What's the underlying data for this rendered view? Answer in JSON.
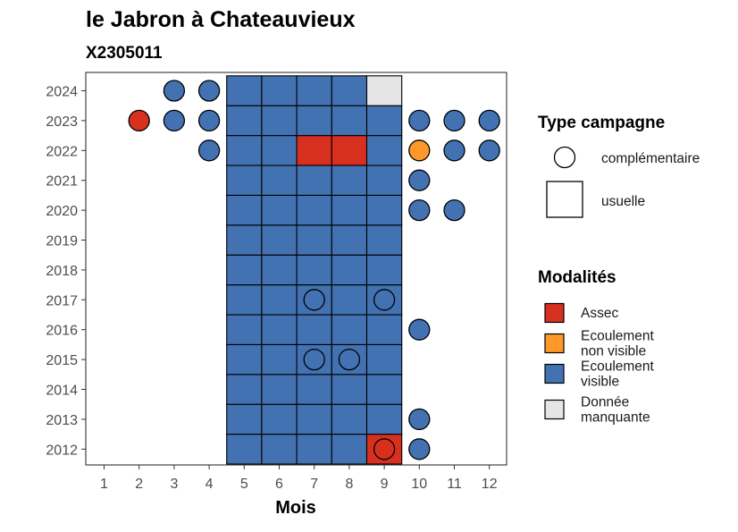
{
  "chart_data": {
    "type": "heatmap",
    "title": "le Jabron à Chateauvieux",
    "subtitle": "X2305011",
    "xlabel": "Mois",
    "ylabel": "",
    "x_ticks": [
      "1",
      "2",
      "3",
      "4",
      "5",
      "6",
      "7",
      "8",
      "9",
      "10",
      "11",
      "12"
    ],
    "y_ticks": [
      "2012",
      "2013",
      "2014",
      "2015",
      "2016",
      "2017",
      "2018",
      "2019",
      "2020",
      "2021",
      "2022",
      "2023",
      "2024"
    ],
    "legend_type": {
      "title": "Type campagne",
      "items": [
        {
          "key": "complementaire",
          "label": "complémentaire",
          "shape": "circle"
        },
        {
          "key": "usuelle",
          "label": "usuelle",
          "shape": "square"
        }
      ]
    },
    "legend_modalites": {
      "title": "Modalités",
      "items": [
        {
          "key": "assec",
          "label_lines": [
            "Assec"
          ],
          "color": "#d7301f"
        },
        {
          "key": "ecoulement_non_visible",
          "label_lines": [
            "Ecoulement",
            "non visible"
          ],
          "color": "#fe9929"
        },
        {
          "key": "ecoulement_visible",
          "label_lines": [
            "Ecoulement",
            "visible"
          ],
          "color": "#4372b3"
        },
        {
          "key": "donnee_manquante",
          "label_lines": [
            "Donnée",
            "manquante"
          ],
          "color": "#e5e5e5"
        }
      ]
    },
    "usuelle": [
      {
        "year": 2012,
        "months": {
          "5": "ecoulement_visible",
          "6": "ecoulement_visible",
          "7": "ecoulement_visible",
          "8": "ecoulement_visible",
          "9": "assec"
        }
      },
      {
        "year": 2013,
        "months": {
          "5": "ecoulement_visible",
          "6": "ecoulement_visible",
          "7": "ecoulement_visible",
          "8": "ecoulement_visible",
          "9": "ecoulement_visible"
        }
      },
      {
        "year": 2014,
        "months": {
          "5": "ecoulement_visible",
          "6": "ecoulement_visible",
          "7": "ecoulement_visible",
          "8": "ecoulement_visible",
          "9": "ecoulement_visible"
        }
      },
      {
        "year": 2015,
        "months": {
          "5": "ecoulement_visible",
          "6": "ecoulement_visible",
          "7": "ecoulement_visible",
          "8": "ecoulement_visible",
          "9": "ecoulement_visible"
        }
      },
      {
        "year": 2016,
        "months": {
          "5": "ecoulement_visible",
          "6": "ecoulement_visible",
          "7": "ecoulement_visible",
          "8": "ecoulement_visible",
          "9": "ecoulement_visible"
        }
      },
      {
        "year": 2017,
        "months": {
          "5": "ecoulement_visible",
          "6": "ecoulement_visible",
          "7": "ecoulement_visible",
          "8": "ecoulement_visible",
          "9": "ecoulement_visible"
        }
      },
      {
        "year": 2018,
        "months": {
          "5": "ecoulement_visible",
          "6": "ecoulement_visible",
          "7": "ecoulement_visible",
          "8": "ecoulement_visible",
          "9": "ecoulement_visible"
        }
      },
      {
        "year": 2019,
        "months": {
          "5": "ecoulement_visible",
          "6": "ecoulement_visible",
          "7": "ecoulement_visible",
          "8": "ecoulement_visible",
          "9": "ecoulement_visible"
        }
      },
      {
        "year": 2020,
        "months": {
          "5": "ecoulement_visible",
          "6": "ecoulement_visible",
          "7": "ecoulement_visible",
          "8": "ecoulement_visible",
          "9": "ecoulement_visible"
        }
      },
      {
        "year": 2021,
        "months": {
          "5": "ecoulement_visible",
          "6": "ecoulement_visible",
          "7": "ecoulement_visible",
          "8": "ecoulement_visible",
          "9": "ecoulement_visible"
        }
      },
      {
        "year": 2022,
        "months": {
          "5": "ecoulement_visible",
          "6": "ecoulement_visible",
          "7": "assec",
          "8": "assec",
          "9": "ecoulement_visible"
        }
      },
      {
        "year": 2023,
        "months": {
          "5": "ecoulement_visible",
          "6": "ecoulement_visible",
          "7": "ecoulement_visible",
          "8": "ecoulement_visible",
          "9": "ecoulement_visible"
        }
      },
      {
        "year": 2024,
        "months": {
          "5": "ecoulement_visible",
          "6": "ecoulement_visible",
          "7": "ecoulement_visible",
          "8": "ecoulement_visible",
          "9": "donnee_manquante"
        }
      }
    ],
    "complementaire": [
      {
        "year": 2024,
        "month": 3,
        "modalite": "ecoulement_visible"
      },
      {
        "year": 2024,
        "month": 4,
        "modalite": "ecoulement_visible"
      },
      {
        "year": 2023,
        "month": 2,
        "modalite": "assec"
      },
      {
        "year": 2023,
        "month": 3,
        "modalite": "ecoulement_visible"
      },
      {
        "year": 2023,
        "month": 4,
        "modalite": "ecoulement_visible"
      },
      {
        "year": 2023,
        "month": 10,
        "modalite": "ecoulement_visible"
      },
      {
        "year": 2023,
        "month": 11,
        "modalite": "ecoulement_visible"
      },
      {
        "year": 2023,
        "month": 12,
        "modalite": "ecoulement_visible"
      },
      {
        "year": 2022,
        "month": 4,
        "modalite": "ecoulement_visible"
      },
      {
        "year": 2022,
        "month": 10,
        "modalite": "ecoulement_non_visible"
      },
      {
        "year": 2022,
        "month": 11,
        "modalite": "ecoulement_visible"
      },
      {
        "year": 2022,
        "month": 12,
        "modalite": "ecoulement_visible"
      },
      {
        "year": 2021,
        "month": 10,
        "modalite": "ecoulement_visible"
      },
      {
        "year": 2020,
        "month": 10,
        "modalite": "ecoulement_visible"
      },
      {
        "year": 2020,
        "month": 11,
        "modalite": "ecoulement_visible"
      },
      {
        "year": 2017,
        "month": 7,
        "modalite": "ecoulement_visible"
      },
      {
        "year": 2017,
        "month": 9,
        "modalite": "ecoulement_visible"
      },
      {
        "year": 2016,
        "month": 10,
        "modalite": "ecoulement_visible"
      },
      {
        "year": 2015,
        "month": 7,
        "modalite": "ecoulement_visible"
      },
      {
        "year": 2015,
        "month": 8,
        "modalite": "ecoulement_visible"
      },
      {
        "year": 2013,
        "month": 10,
        "modalite": "ecoulement_visible"
      },
      {
        "year": 2012,
        "month": 9,
        "modalite": "assec"
      },
      {
        "year": 2012,
        "month": 10,
        "modalite": "ecoulement_visible"
      }
    ]
  }
}
